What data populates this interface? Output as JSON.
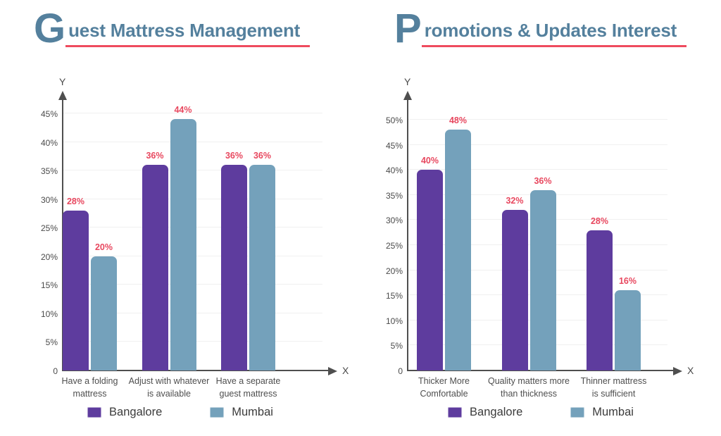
{
  "page": {
    "background": "#ffffff"
  },
  "colors": {
    "series": [
      "#5e3c9e",
      "#74a1bb"
    ],
    "title_text": "#54809d",
    "title_underline": "#ef4b5e",
    "value_label": "#e8485f",
    "axis": "#4f4f4f",
    "tick_text": "#4a4a4a",
    "category_text": "#4e4e4e",
    "legend_text": "#3b3b3b",
    "gridline": "#f0f0f0"
  },
  "chart_data": [
    {
      "type": "bar",
      "title": "Guest Mattress Management",
      "title_dropcap": "G",
      "title_rest": "uest Mattress Management",
      "y_axis_title": "Y",
      "x_axis_title": "X",
      "origin_label": "0",
      "value_suffix": "%",
      "categories": [
        "Have a folding\nmattress",
        "Adjust with whatever\nis available",
        "Have a separate\nguest mattress"
      ],
      "series": [
        {
          "name": "Bangalore",
          "values": [
            28,
            36,
            36
          ]
        },
        {
          "name": "Mumbai",
          "values": [
            20,
            44,
            36
          ]
        }
      ],
      "y_ticks": [
        {
          "value": 45,
          "label": "45%"
        },
        {
          "value": 40,
          "label": "40%"
        },
        {
          "value": 35,
          "label": "35%"
        },
        {
          "value": 30,
          "label": "30%"
        },
        {
          "value": 25,
          "label": "25%"
        },
        {
          "value": 20,
          "label": "20%"
        },
        {
          "value": 15,
          "label": "15%"
        },
        {
          "value": 10,
          "label": "10%"
        },
        {
          "value": 5,
          "label": "5%"
        }
      ],
      "ylim": [
        0,
        45
      ],
      "grid": true,
      "legend": [
        "Bangalore",
        "Mumbai"
      ],
      "legend_position": "bottom"
    },
    {
      "type": "bar",
      "title": "Promotions & Updates Interest",
      "title_dropcap": "P",
      "title_rest": "romotions & Updates Interest",
      "y_axis_title": "Y",
      "x_axis_title": "X",
      "origin_label": "0",
      "value_suffix": "%",
      "categories": [
        "Thicker More\nComfortable",
        "Quality matters more\nthan thickness",
        "Thinner mattress\nis sufficient"
      ],
      "series": [
        {
          "name": "Bangalore",
          "values": [
            40,
            32,
            28
          ]
        },
        {
          "name": "Mumbai",
          "values": [
            48,
            36,
            16
          ]
        }
      ],
      "y_ticks": [
        {
          "value": 50,
          "label": "50%"
        },
        {
          "value": 45,
          "label": "45%"
        },
        {
          "value": 40,
          "label": "40%"
        },
        {
          "value": 35,
          "label": "35%"
        },
        {
          "value": 30,
          "label": "30%"
        },
        {
          "value": 25,
          "label": "25%"
        },
        {
          "value": 20,
          "label": "20%"
        },
        {
          "value": 15,
          "label": "15%"
        },
        {
          "value": 10,
          "label": "10%"
        },
        {
          "value": 5,
          "label": "5%"
        }
      ],
      "ylim": [
        0,
        50
      ],
      "grid": true,
      "legend": [
        "Bangalore",
        "Mumbai"
      ],
      "legend_position": "bottom"
    }
  ]
}
